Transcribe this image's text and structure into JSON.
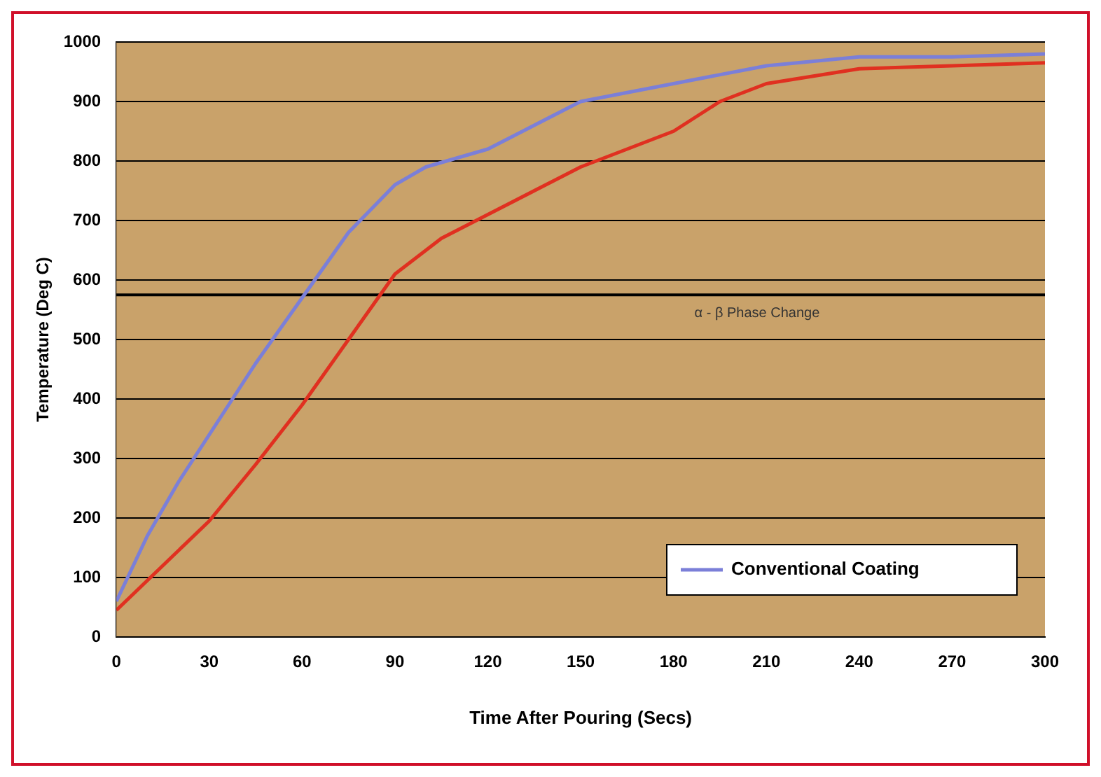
{
  "chart_data": {
    "type": "line",
    "xlabel": "Time After Pouring (Secs)",
    "ylabel": "Temperature (Deg C)",
    "xlim": [
      0,
      300
    ],
    "xticks": [
      0,
      30,
      60,
      90,
      120,
      150,
      180,
      210,
      240,
      270,
      300
    ],
    "ylim": [
      0,
      1000
    ],
    "yticks": [
      0,
      100,
      200,
      300,
      400,
      500,
      600,
      700,
      800,
      900,
      1000
    ],
    "grid": "y",
    "legend": "bottom right",
    "marker": "none",
    "ref_lines": [
      {
        "axis": "y",
        "value": 575,
        "label": "α - β Phase Change",
        "color": "#000000"
      }
    ],
    "series": [
      {
        "name": "Conventional Coating",
        "color": "#7b7fd8",
        "x": [
          0,
          10,
          20,
          30,
          45,
          60,
          75,
          90,
          100,
          120,
          135,
          150,
          165,
          180,
          210,
          240,
          270,
          300
        ],
        "values": [
          60,
          170,
          260,
          340,
          460,
          570,
          680,
          760,
          790,
          820,
          860,
          900,
          915,
          930,
          960,
          975,
          975,
          980
        ]
      },
      {
        "color": "#e03020",
        "x": [
          0,
          15,
          30,
          45,
          60,
          75,
          90,
          105,
          120,
          150,
          180,
          195,
          210,
          240,
          270,
          300
        ],
        "values": [
          45,
          120,
          195,
          290,
          390,
          500,
          610,
          670,
          710,
          790,
          850,
          900,
          930,
          955,
          960,
          965
        ]
      }
    ]
  }
}
